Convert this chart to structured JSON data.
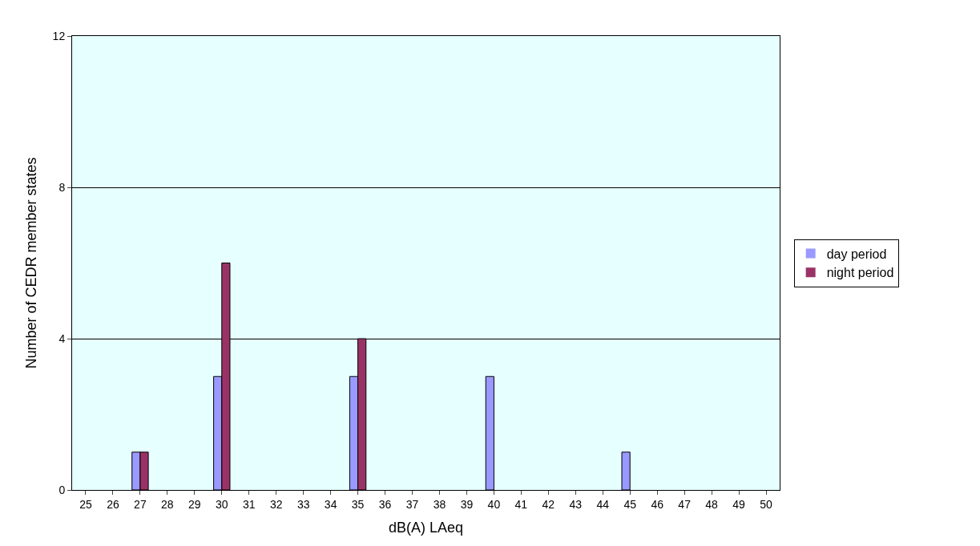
{
  "chart_data": {
    "type": "bar",
    "xlabel": "dB(A) LAeq",
    "ylabel": "Number of CEDR member states",
    "categories": [
      "25",
      "26",
      "27",
      "28",
      "29",
      "30",
      "31",
      "32",
      "33",
      "34",
      "35",
      "36",
      "37",
      "38",
      "39",
      "40",
      "41",
      "42",
      "43",
      "44",
      "45",
      "46",
      "47",
      "48",
      "49",
      "50"
    ],
    "series": [
      {
        "name": "day period",
        "color": "#9999ff",
        "values": [
          0,
          0,
          1,
          0,
          0,
          3,
          0,
          0,
          0,
          0,
          3,
          0,
          0,
          0,
          0,
          3,
          0,
          0,
          0,
          0,
          1,
          0,
          0,
          0,
          0,
          0
        ]
      },
      {
        "name": "night period",
        "color": "#993366",
        "values": [
          0,
          0,
          1,
          0,
          0,
          6,
          0,
          0,
          0,
          0,
          4,
          0,
          0,
          0,
          0,
          0,
          0,
          0,
          0,
          0,
          0,
          0,
          0,
          0,
          0,
          0
        ]
      }
    ],
    "ylim": [
      0,
      12
    ],
    "yticks": [
      0,
      4,
      8,
      12
    ],
    "grid": "y",
    "legend": "right"
  }
}
